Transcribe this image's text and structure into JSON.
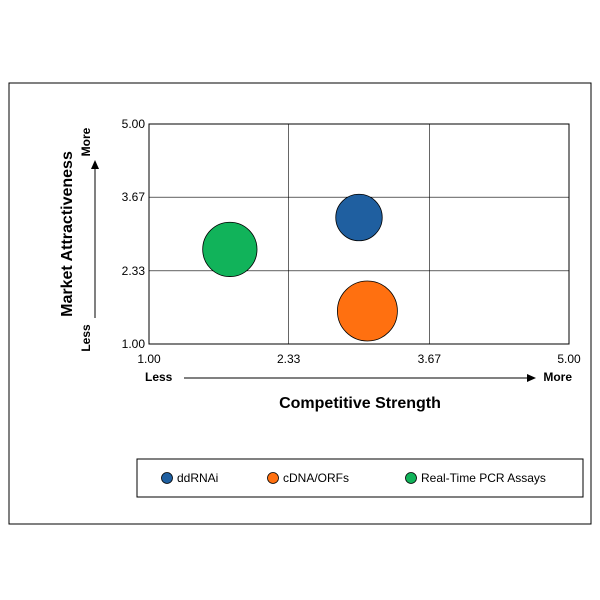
{
  "chart_data": {
    "type": "scatter",
    "title": "",
    "xlabel": "Competitive Strength",
    "ylabel": "Market Attractiveness",
    "xlim": [
      1.0,
      5.0
    ],
    "ylim": [
      1.0,
      5.0
    ],
    "x_ticks": [
      "1.00",
      "2.33",
      "3.67",
      "5.00"
    ],
    "y_ticks": [
      "1.00",
      "2.33",
      "3.67",
      "5.00"
    ],
    "x_direction": {
      "low": "Less",
      "high": "More"
    },
    "y_direction": {
      "low": "Less",
      "high": "More"
    },
    "grid": true,
    "legend_position": "bottom",
    "series": [
      {
        "name": "ddRNAi",
        "x": 3.0,
        "y": 3.3,
        "size": 0.6,
        "color": "#1f5fa0"
      },
      {
        "name": "cDNA/ORFs",
        "x": 3.08,
        "y": 1.6,
        "size": 1.0,
        "color": "#ff7010"
      },
      {
        "name": "Real-Time PCR Assays",
        "x": 1.77,
        "y": 2.72,
        "size": 0.82,
        "color": "#11b35a"
      }
    ]
  }
}
